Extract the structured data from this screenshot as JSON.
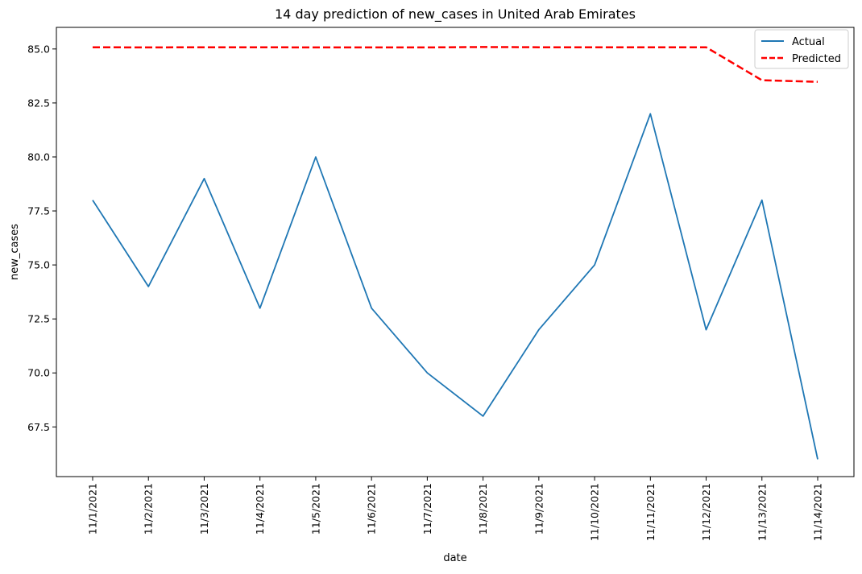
{
  "chart_data": {
    "type": "line",
    "title": "14 day prediction of new_cases in United Arab Emirates",
    "xlabel": "date",
    "ylabel": "new_cases",
    "categories": [
      "11/1/2021",
      "11/2/2021",
      "11/3/2021",
      "11/4/2021",
      "11/5/2021",
      "11/6/2021",
      "11/7/2021",
      "11/8/2021",
      "11/9/2021",
      "11/10/2021",
      "11/11/2021",
      "11/12/2021",
      "11/13/2021",
      "11/14/2021"
    ],
    "ylim": [
      65.2,
      86.0
    ],
    "yticks": [
      "67.5",
      "70.0",
      "72.5",
      "75.0",
      "77.5",
      "80.0",
      "82.5",
      "85.0"
    ],
    "grid": false,
    "legend_position": "top-right",
    "series": [
      {
        "name": "Actual",
        "color": "#1f77b4",
        "style": "solid",
        "values": [
          78,
          74,
          79,
          73,
          80,
          73,
          70,
          68,
          72,
          75,
          82,
          72,
          78,
          66
        ]
      },
      {
        "name": "Predicted",
        "color": "#ff0000",
        "style": "dashed",
        "values": [
          85.08,
          85.07,
          85.08,
          85.08,
          85.07,
          85.07,
          85.07,
          85.09,
          85.08,
          85.08,
          85.08,
          85.08,
          83.55,
          83.48
        ]
      }
    ]
  }
}
